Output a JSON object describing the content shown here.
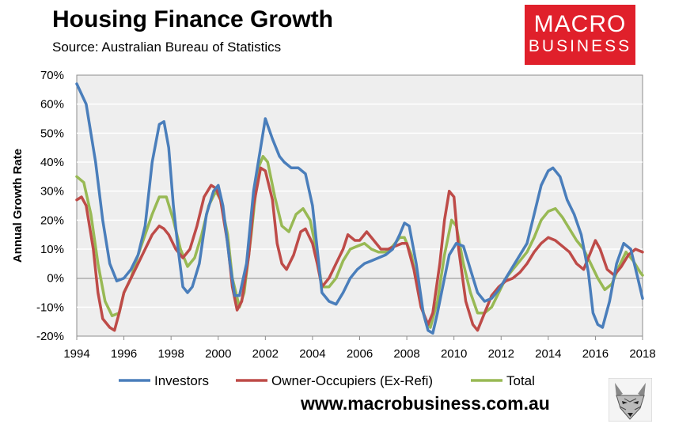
{
  "header": {
    "title": "Housing Finance Growth",
    "source": "Source: Australian Bureau of Statistics",
    "logo_line1": "MACRO",
    "logo_line2": "BUSINESS"
  },
  "footer": {
    "website": "www.macrobusiness.com.au"
  },
  "colors": {
    "investors": "#4a7ebb",
    "owner_occupiers": "#be4b48",
    "total": "#98b954",
    "grid": "#ffffff",
    "plot_bg": "#eeeeee"
  },
  "chart_data": {
    "type": "line",
    "title": "Housing Finance Growth",
    "xlabel": "",
    "ylabel": "Annual Growth Rate",
    "xlim": [
      1994,
      2018
    ],
    "ylim": [
      -20,
      70
    ],
    "x_ticks": [
      "1994",
      "1996",
      "1998",
      "2000",
      "2002",
      "2004",
      "2006",
      "2008",
      "2010",
      "2012",
      "2014",
      "2016",
      "2018"
    ],
    "y_ticks": [
      "70%",
      "60%",
      "50%",
      "40%",
      "30%",
      "20%",
      "10%",
      "0%",
      "-10%",
      "-20%"
    ],
    "legend_position": "bottom",
    "series": [
      {
        "name": "Investors",
        "points": [
          [
            1994,
            67
          ],
          [
            1994.4,
            60
          ],
          [
            1994.8,
            40
          ],
          [
            1995.1,
            20
          ],
          [
            1995.4,
            5
          ],
          [
            1995.7,
            -1
          ],
          [
            1996,
            0
          ],
          [
            1996.3,
            3
          ],
          [
            1996.6,
            8
          ],
          [
            1996.9,
            18
          ],
          [
            1997.2,
            40
          ],
          [
            1997.5,
            53
          ],
          [
            1997.7,
            54
          ],
          [
            1997.9,
            45
          ],
          [
            1998.1,
            25
          ],
          [
            1998.3,
            10
          ],
          [
            1998.5,
            -3
          ],
          [
            1998.7,
            -5
          ],
          [
            1998.9,
            -3
          ],
          [
            1999.2,
            5
          ],
          [
            1999.5,
            22
          ],
          [
            1999.8,
            30
          ],
          [
            2000,
            32
          ],
          [
            2000.2,
            25
          ],
          [
            2000.5,
            5
          ],
          [
            2000.7,
            -6
          ],
          [
            2000.9,
            -6
          ],
          [
            2001.2,
            5
          ],
          [
            2001.5,
            30
          ],
          [
            2001.8,
            45
          ],
          [
            2002,
            55
          ],
          [
            2002.3,
            48
          ],
          [
            2002.6,
            42
          ],
          [
            2002.8,
            40
          ],
          [
            2003.1,
            38
          ],
          [
            2003.4,
            38
          ],
          [
            2003.7,
            36
          ],
          [
            2004,
            25
          ],
          [
            2004.2,
            10
          ],
          [
            2004.4,
            -5
          ],
          [
            2004.7,
            -8
          ],
          [
            2005,
            -9
          ],
          [
            2005.3,
            -5
          ],
          [
            2005.6,
            0
          ],
          [
            2005.9,
            3
          ],
          [
            2006.2,
            5
          ],
          [
            2006.5,
            6
          ],
          [
            2006.8,
            7
          ],
          [
            2007.1,
            8
          ],
          [
            2007.4,
            10
          ],
          [
            2007.7,
            15
          ],
          [
            2007.9,
            19
          ],
          [
            2008.1,
            18
          ],
          [
            2008.4,
            5
          ],
          [
            2008.7,
            -12
          ],
          [
            2008.9,
            -18
          ],
          [
            2009.1,
            -19
          ],
          [
            2009.3,
            -12
          ],
          [
            2009.6,
            0
          ],
          [
            2009.8,
            8
          ],
          [
            2010.1,
            12
          ],
          [
            2010.4,
            11
          ],
          [
            2010.7,
            3
          ],
          [
            2011,
            -5
          ],
          [
            2011.3,
            -8
          ],
          [
            2011.6,
            -7
          ],
          [
            2011.9,
            -4
          ],
          [
            2012.2,
            0
          ],
          [
            2012.5,
            4
          ],
          [
            2012.8,
            8
          ],
          [
            2013.1,
            12
          ],
          [
            2013.4,
            22
          ],
          [
            2013.7,
            32
          ],
          [
            2014,
            37
          ],
          [
            2014.2,
            38
          ],
          [
            2014.5,
            35
          ],
          [
            2014.8,
            27
          ],
          [
            2015.1,
            22
          ],
          [
            2015.4,
            15
          ],
          [
            2015.7,
            2
          ],
          [
            2015.9,
            -12
          ],
          [
            2016.1,
            -16
          ],
          [
            2016.3,
            -17
          ],
          [
            2016.6,
            -8
          ],
          [
            2016.9,
            5
          ],
          [
            2017.2,
            12
          ],
          [
            2017.5,
            10
          ],
          [
            2017.8,
            0
          ],
          [
            2018,
            -7
          ]
        ]
      },
      {
        "name": "Owner-Occupiers (Ex-Refi)",
        "points": [
          [
            1994,
            27
          ],
          [
            1994.2,
            28
          ],
          [
            1994.4,
            25
          ],
          [
            1994.7,
            10
          ],
          [
            1994.9,
            -5
          ],
          [
            1995.1,
            -14
          ],
          [
            1995.4,
            -17
          ],
          [
            1995.6,
            -18
          ],
          [
            1995.8,
            -12
          ],
          [
            1996,
            -5
          ],
          [
            1996.3,
            0
          ],
          [
            1996.6,
            5
          ],
          [
            1996.9,
            10
          ],
          [
            1997.2,
            15
          ],
          [
            1997.5,
            18
          ],
          [
            1997.7,
            17
          ],
          [
            1997.9,
            15
          ],
          [
            1998.2,
            10
          ],
          [
            1998.5,
            7
          ],
          [
            1998.8,
            10
          ],
          [
            1999.1,
            18
          ],
          [
            1999.4,
            28
          ],
          [
            1999.7,
            32
          ],
          [
            1999.9,
            31
          ],
          [
            2000.1,
            27
          ],
          [
            2000.4,
            12
          ],
          [
            2000.6,
            -3
          ],
          [
            2000.8,
            -11
          ],
          [
            2001,
            -8
          ],
          [
            2001.3,
            8
          ],
          [
            2001.5,
            25
          ],
          [
            2001.8,
            38
          ],
          [
            2002,
            37
          ],
          [
            2002.3,
            27
          ],
          [
            2002.5,
            12
          ],
          [
            2002.7,
            5
          ],
          [
            2002.9,
            3
          ],
          [
            2003.2,
            8
          ],
          [
            2003.5,
            16
          ],
          [
            2003.7,
            17
          ],
          [
            2004,
            12
          ],
          [
            2004.2,
            5
          ],
          [
            2004.4,
            -3
          ],
          [
            2004.7,
            0
          ],
          [
            2005,
            5
          ],
          [
            2005.3,
            10
          ],
          [
            2005.5,
            15
          ],
          [
            2005.8,
            13
          ],
          [
            2006,
            13
          ],
          [
            2006.3,
            16
          ],
          [
            2006.6,
            13
          ],
          [
            2006.9,
            10
          ],
          [
            2007.2,
            10
          ],
          [
            2007.5,
            11
          ],
          [
            2007.8,
            12
          ],
          [
            2008,
            12
          ],
          [
            2008.3,
            3
          ],
          [
            2008.6,
            -10
          ],
          [
            2008.9,
            -16
          ],
          [
            2009.1,
            -12
          ],
          [
            2009.4,
            5
          ],
          [
            2009.6,
            20
          ],
          [
            2009.8,
            30
          ],
          [
            2010,
            28
          ],
          [
            2010.2,
            10
          ],
          [
            2010.5,
            -8
          ],
          [
            2010.8,
            -16
          ],
          [
            2011,
            -18
          ],
          [
            2011.3,
            -12
          ],
          [
            2011.6,
            -6
          ],
          [
            2011.9,
            -3
          ],
          [
            2012.2,
            -1
          ],
          [
            2012.5,
            0
          ],
          [
            2012.8,
            2
          ],
          [
            2013.1,
            5
          ],
          [
            2013.4,
            9
          ],
          [
            2013.7,
            12
          ],
          [
            2014,
            14
          ],
          [
            2014.3,
            13
          ],
          [
            2014.6,
            11
          ],
          [
            2014.9,
            9
          ],
          [
            2015.2,
            5
          ],
          [
            2015.5,
            3
          ],
          [
            2015.8,
            9
          ],
          [
            2016,
            13
          ],
          [
            2016.2,
            10
          ],
          [
            2016.5,
            3
          ],
          [
            2016.8,
            1
          ],
          [
            2017.1,
            4
          ],
          [
            2017.4,
            8
          ],
          [
            2017.7,
            10
          ],
          [
            2018,
            9
          ]
        ]
      },
      {
        "name": "Total",
        "points": [
          [
            1994,
            35
          ],
          [
            1994.3,
            33
          ],
          [
            1994.6,
            22
          ],
          [
            1994.9,
            5
          ],
          [
            1995.2,
            -8
          ],
          [
            1995.5,
            -13
          ],
          [
            1995.8,
            -12
          ],
          [
            1996,
            -5
          ],
          [
            1996.3,
            0
          ],
          [
            1996.6,
            8
          ],
          [
            1996.9,
            15
          ],
          [
            1997.2,
            22
          ],
          [
            1997.5,
            28
          ],
          [
            1997.8,
            28
          ],
          [
            1998.1,
            20
          ],
          [
            1998.4,
            10
          ],
          [
            1998.7,
            4
          ],
          [
            1999,
            7
          ],
          [
            1999.3,
            15
          ],
          [
            1999.6,
            25
          ],
          [
            1999.9,
            30
          ],
          [
            2000.1,
            27
          ],
          [
            2000.4,
            15
          ],
          [
            2000.6,
            0
          ],
          [
            2000.9,
            -10
          ],
          [
            2001.1,
            -5
          ],
          [
            2001.4,
            15
          ],
          [
            2001.7,
            38
          ],
          [
            2001.9,
            42
          ],
          [
            2002.1,
            40
          ],
          [
            2002.4,
            28
          ],
          [
            2002.7,
            18
          ],
          [
            2003,
            16
          ],
          [
            2003.3,
            22
          ],
          [
            2003.6,
            24
          ],
          [
            2003.9,
            20
          ],
          [
            2004.2,
            8
          ],
          [
            2004.4,
            -3
          ],
          [
            2004.7,
            -3
          ],
          [
            2005,
            0
          ],
          [
            2005.3,
            6
          ],
          [
            2005.6,
            10
          ],
          [
            2005.9,
            11
          ],
          [
            2006.2,
            12
          ],
          [
            2006.5,
            10
          ],
          [
            2006.8,
            9
          ],
          [
            2007.1,
            9
          ],
          [
            2007.4,
            11
          ],
          [
            2007.7,
            14
          ],
          [
            2007.9,
            14
          ],
          [
            2008.2,
            8
          ],
          [
            2008.5,
            -5
          ],
          [
            2008.8,
            -15
          ],
          [
            2009,
            -17
          ],
          [
            2009.3,
            -8
          ],
          [
            2009.6,
            8
          ],
          [
            2009.9,
            20
          ],
          [
            2010.1,
            18
          ],
          [
            2010.4,
            5
          ],
          [
            2010.7,
            -5
          ],
          [
            2011,
            -12
          ],
          [
            2011.3,
            -12
          ],
          [
            2011.6,
            -10
          ],
          [
            2011.9,
            -5
          ],
          [
            2012.2,
            0
          ],
          [
            2012.5,
            3
          ],
          [
            2012.8,
            6
          ],
          [
            2013.1,
            9
          ],
          [
            2013.4,
            14
          ],
          [
            2013.7,
            20
          ],
          [
            2014,
            23
          ],
          [
            2014.3,
            24
          ],
          [
            2014.6,
            21
          ],
          [
            2014.9,
            17
          ],
          [
            2015.2,
            13
          ],
          [
            2015.5,
            10
          ],
          [
            2015.8,
            5
          ],
          [
            2016.1,
            0
          ],
          [
            2016.4,
            -4
          ],
          [
            2016.7,
            -2
          ],
          [
            2017,
            4
          ],
          [
            2017.3,
            9
          ],
          [
            2017.6,
            6
          ],
          [
            2017.9,
            2
          ],
          [
            2018,
            1
          ]
        ]
      }
    ]
  }
}
